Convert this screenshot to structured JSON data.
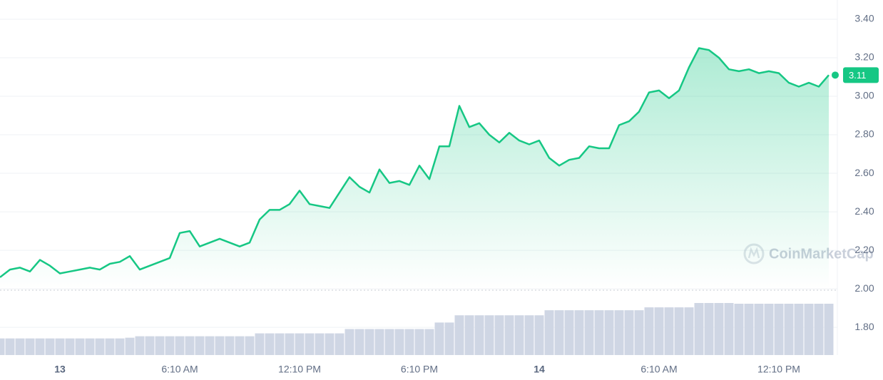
{
  "chart_data": {
    "type": "line",
    "watermark": "CoinMarketCap",
    "x": [
      -3,
      -2.5,
      -2,
      -1.5,
      -1,
      -0.5,
      0,
      0.5,
      1,
      1.5,
      2,
      2.5,
      3,
      3.5,
      4,
      4.5,
      5,
      5.5,
      6,
      6.5,
      7,
      7.5,
      8,
      8.5,
      9,
      9.5,
      10,
      10.5,
      11,
      11.5,
      12,
      12.5,
      13,
      13.5,
      14,
      14.5,
      15,
      15.5,
      16,
      16.5,
      17,
      17.5,
      18,
      18.5,
      19,
      19.5,
      20,
      20.5,
      21,
      21.5,
      22,
      22.5,
      23,
      23.5,
      24,
      24.5,
      25,
      25.5,
      26,
      26.5,
      27,
      27.5,
      28,
      28.5,
      29,
      29.5,
      30,
      30.5,
      31,
      31.5,
      32,
      32.5,
      33,
      33.5,
      34,
      34.5,
      35,
      35.5,
      36,
      36.5,
      37,
      37.5,
      38,
      38.5
    ],
    "series": [
      {
        "name": "Price",
        "color": "#16c784",
        "values": [
          2.06,
          2.1,
          2.11,
          2.09,
          2.15,
          2.12,
          2.08,
          2.09,
          2.1,
          2.11,
          2.1,
          2.13,
          2.14,
          2.17,
          2.1,
          2.12,
          2.14,
          2.16,
          2.29,
          2.3,
          2.22,
          2.24,
          2.26,
          2.24,
          2.22,
          2.24,
          2.36,
          2.41,
          2.41,
          2.44,
          2.51,
          2.44,
          2.43,
          2.42,
          2.5,
          2.58,
          2.53,
          2.5,
          2.62,
          2.55,
          2.56,
          2.54,
          2.64,
          2.57,
          2.74,
          2.74,
          2.95,
          2.84,
          2.86,
          2.8,
          2.76,
          2.81,
          2.77,
          2.75,
          2.77,
          2.68,
          2.64,
          2.67,
          2.68,
          2.74,
          2.73,
          2.73,
          2.85,
          2.87,
          2.92,
          3.02,
          3.03,
          2.99,
          3.03,
          3.15,
          3.25,
          3.24,
          3.2,
          3.14,
          3.13,
          3.14,
          3.12,
          3.13,
          3.12,
          3.07,
          3.05,
          3.07,
          3.05,
          3.11
        ]
      },
      {
        "name": "Volume",
        "color": "#cfd6e4",
        "values": [
          23,
          23,
          23,
          23,
          23,
          23,
          23,
          23,
          23,
          23,
          23,
          23,
          23,
          24,
          26,
          26,
          26,
          26,
          26,
          26,
          26,
          26,
          26,
          26,
          26,
          26,
          30,
          30,
          30,
          30,
          30,
          30,
          30,
          30,
          30,
          36,
          36,
          36,
          36,
          36,
          36,
          36,
          36,
          36,
          45,
          45,
          55,
          55,
          55,
          55,
          55,
          55,
          55,
          55,
          55,
          62,
          62,
          62,
          62,
          62,
          62,
          62,
          62,
          62,
          62,
          66,
          66,
          66,
          66,
          66,
          72,
          72,
          72,
          72,
          71,
          71,
          71,
          71,
          71,
          71,
          71,
          71,
          71,
          71
        ]
      }
    ],
    "xlim": [
      -3,
      39
    ],
    "xticks": [
      {
        "value": 0,
        "label": "13"
      },
      {
        "value": 6,
        "label": "6:10 AM"
      },
      {
        "value": 12,
        "label": "12:10 PM"
      },
      {
        "value": 18,
        "label": "6:10 PM"
      },
      {
        "value": 24,
        "label": "14"
      },
      {
        "value": 30,
        "label": "6:10 AM"
      },
      {
        "value": 36,
        "label": "12:10 PM"
      }
    ],
    "ylim": [
      1.656,
      3.5
    ],
    "yticks": [
      {
        "value": 1.8,
        "label": "1.80"
      },
      {
        "value": 2,
        "label": "2.00"
      },
      {
        "value": 2.2,
        "label": "2.20"
      },
      {
        "value": 2.4,
        "label": "2.40"
      },
      {
        "value": 2.6,
        "label": "2.60"
      },
      {
        "value": 2.8,
        "label": "2.80"
      },
      {
        "value": 3,
        "label": "3.00"
      },
      {
        "value": 3.2,
        "label": "3.20"
      },
      {
        "value": 3.4,
        "label": "3.40"
      }
    ],
    "grid": true
  }
}
